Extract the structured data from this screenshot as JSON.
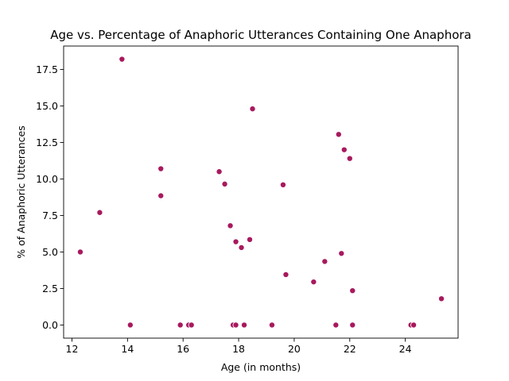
{
  "chart_data": {
    "type": "scatter",
    "title": "Age vs. Percentage of Anaphoric Utterances Containing One Anaphora",
    "xlabel": "Age (in months)",
    "ylabel": "% of Anaphoric Utterances",
    "xlim": [
      11.7,
      25.9
    ],
    "ylim": [
      -0.9,
      19.1
    ],
    "xticks": [
      12,
      14,
      16,
      18,
      20,
      22,
      24
    ],
    "xtick_labels": [
      "12",
      "14",
      "16",
      "18",
      "20",
      "22",
      "24"
    ],
    "yticks": [
      0,
      2.5,
      5,
      7.5,
      10,
      12.5,
      15,
      17.5
    ],
    "ytick_labels": [
      "0.0",
      "2.5",
      "5.0",
      "7.5",
      "10.0",
      "12.5",
      "15.0",
      "17.5"
    ],
    "grid": false,
    "marker_color": "#a8195e",
    "points": [
      {
        "x": 12.3,
        "y": 5.0
      },
      {
        "x": 13.0,
        "y": 7.7
      },
      {
        "x": 13.8,
        "y": 18.2
      },
      {
        "x": 14.1,
        "y": 0.0
      },
      {
        "x": 15.2,
        "y": 10.7
      },
      {
        "x": 15.2,
        "y": 8.85
      },
      {
        "x": 15.9,
        "y": 0.0
      },
      {
        "x": 16.2,
        "y": 0.0
      },
      {
        "x": 16.3,
        "y": 0.0
      },
      {
        "x": 17.3,
        "y": 10.5
      },
      {
        "x": 17.5,
        "y": 9.65
      },
      {
        "x": 17.7,
        "y": 6.8
      },
      {
        "x": 17.8,
        "y": 0.0
      },
      {
        "x": 17.9,
        "y": 5.7
      },
      {
        "x": 17.9,
        "y": 0.0
      },
      {
        "x": 18.1,
        "y": 5.3
      },
      {
        "x": 18.2,
        "y": 0.0
      },
      {
        "x": 18.4,
        "y": 5.85
      },
      {
        "x": 18.5,
        "y": 14.8
      },
      {
        "x": 19.2,
        "y": 0.0
      },
      {
        "x": 19.6,
        "y": 9.6
      },
      {
        "x": 19.7,
        "y": 3.45
      },
      {
        "x": 20.7,
        "y": 2.95
      },
      {
        "x": 21.1,
        "y": 4.35
      },
      {
        "x": 21.5,
        "y": 0.0
      },
      {
        "x": 21.6,
        "y": 13.05
      },
      {
        "x": 21.7,
        "y": 4.9
      },
      {
        "x": 21.8,
        "y": 12.0
      },
      {
        "x": 22.0,
        "y": 11.4
      },
      {
        "x": 22.1,
        "y": 2.35
      },
      {
        "x": 22.1,
        "y": 0.0
      },
      {
        "x": 24.2,
        "y": 0.0
      },
      {
        "x": 24.3,
        "y": 0.0
      },
      {
        "x": 25.3,
        "y": 1.8
      }
    ]
  }
}
